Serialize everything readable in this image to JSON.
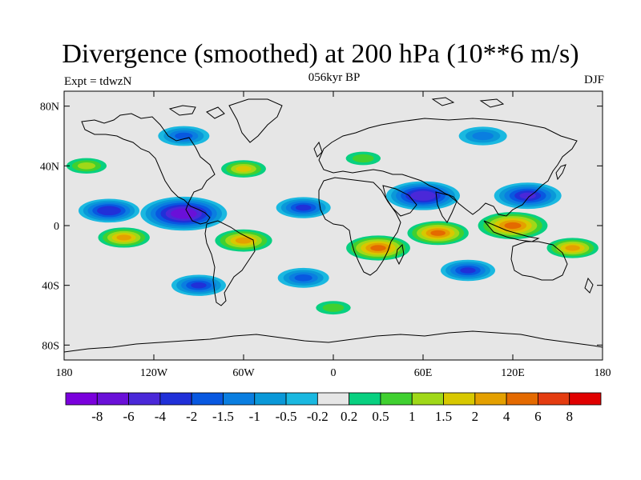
{
  "title": "Divergence (smoothed) at 200 hPa (10**6 m/s)",
  "subtitle": "056kyr BP",
  "left_label": "Expt = tdwzN",
  "right_label": "DJF",
  "map": {
    "lon_range": [
      -180,
      180
    ],
    "lat_range": [
      -90,
      90
    ],
    "lon_ticks": [
      {
        "value": -180,
        "label": "180"
      },
      {
        "value": -120,
        "label": "120W"
      },
      {
        "value": -60,
        "label": "60W"
      },
      {
        "value": 0,
        "label": "0"
      },
      {
        "value": 60,
        "label": "60E"
      },
      {
        "value": 120,
        "label": "120E"
      },
      {
        "value": 180,
        "label": "180"
      }
    ],
    "lat_ticks": [
      {
        "value": 80,
        "label": "80N"
      },
      {
        "value": 40,
        "label": "40N"
      },
      {
        "value": 0,
        "label": "0"
      },
      {
        "value": -40,
        "label": "40S"
      },
      {
        "value": -80,
        "label": "80S"
      }
    ]
  },
  "colorbar": {
    "colors": [
      "#7a00dc",
      "#6a10d8",
      "#4a28d8",
      "#2030d8",
      "#0858e0",
      "#0a7ee0",
      "#0a98d8",
      "#1ab8e0",
      "#e6e6e6",
      "#08d080",
      "#40d030",
      "#a0d818",
      "#d8c800",
      "#e4a000",
      "#e46a00",
      "#e43c10",
      "#e00000"
    ],
    "labels": [
      "-8",
      "-6",
      "-4",
      "-2",
      "-1.5",
      "-1",
      "-0.5",
      "-0.2",
      "0.2",
      "0.5",
      "1",
      "1.5",
      "2",
      "4",
      "6",
      "8"
    ]
  },
  "chart_data": {
    "type": "heatmap",
    "title": "Divergence (smoothed) at 200 hPa (10**6 m/s)",
    "subtitle": "056kyr BP",
    "xlabel": "",
    "ylabel": "",
    "xlim": [
      -180,
      180
    ],
    "ylim": [
      -90,
      90
    ],
    "levels": [
      -8,
      -6,
      -4,
      -2,
      -1.5,
      -1,
      -0.5,
      -0.2,
      0.2,
      0.5,
      1,
      1.5,
      2,
      4,
      6,
      8
    ],
    "features": [
      {
        "lon": -100,
        "lat": 8,
        "value": -7
      },
      {
        "lon": -150,
        "lat": 10,
        "value": -3
      },
      {
        "lon": 60,
        "lat": 20,
        "value": -5
      },
      {
        "lon": 130,
        "lat": 20,
        "value": -4
      },
      {
        "lon": -20,
        "lat": 12,
        "value": -2
      },
      {
        "lon": 30,
        "lat": -15,
        "value": 5
      },
      {
        "lon": 70,
        "lat": -5,
        "value": 4.5
      },
      {
        "lon": 120,
        "lat": 0,
        "value": 6
      },
      {
        "lon": -60,
        "lat": -10,
        "value": 4
      },
      {
        "lon": -140,
        "lat": -8,
        "value": 3
      },
      {
        "lon": 160,
        "lat": -15,
        "value": 3
      },
      {
        "lon": -165,
        "lat": 40,
        "value": 1.5
      },
      {
        "lon": -60,
        "lat": 38,
        "value": 2
      },
      {
        "lon": 20,
        "lat": 45,
        "value": 1
      },
      {
        "lon": -90,
        "lat": -40,
        "value": -2
      },
      {
        "lon": 90,
        "lat": -30,
        "value": -2
      },
      {
        "lon": -20,
        "lat": -35,
        "value": -1.5
      },
      {
        "lon": 0,
        "lat": -55,
        "value": 1
      },
      {
        "lon": -100,
        "lat": 60,
        "value": -1.5
      },
      {
        "lon": 100,
        "lat": 60,
        "value": -1
      }
    ]
  }
}
